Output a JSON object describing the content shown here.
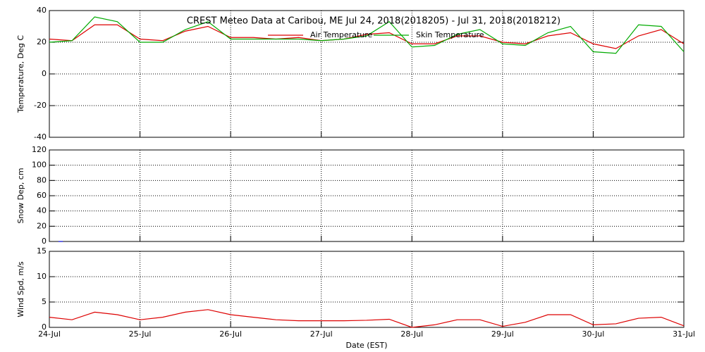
{
  "chart_data": [
    {
      "type": "line",
      "title": "CREST Meteo Data at Caribou, ME   Jul 24, 2018(2018205) - Jul 31, 2018(2018212)",
      "ylabel": "Temperature, Deg C",
      "legend": "top-center",
      "x": [
        0,
        0.25,
        0.5,
        0.75,
        1,
        1.25,
        1.5,
        1.75,
        2,
        2.25,
        2.5,
        2.75,
        3,
        3.25,
        3.5,
        3.75,
        4,
        4.25,
        4.5,
        4.75,
        5,
        5.25,
        5.5,
        5.75,
        6,
        6.25,
        6.5,
        6.75,
        7
      ],
      "series": [
        {
          "name": "Air Temperature",
          "color": "#dd0000",
          "values": [
            22,
            21,
            31,
            31,
            22,
            21,
            27,
            30,
            23,
            23,
            22,
            23,
            21,
            22,
            25,
            26,
            19,
            19,
            24,
            24,
            20,
            19,
            24,
            26,
            19,
            16,
            24,
            28,
            19
          ]
        },
        {
          "name": "Skin Temperature",
          "color": "#00aa00",
          "values": [
            20,
            21,
            36,
            33,
            20,
            20,
            28,
            33,
            22,
            22,
            22,
            22,
            21,
            22,
            24,
            33,
            17,
            18,
            25,
            28,
            19,
            18,
            26,
            30,
            14,
            13,
            31,
            30,
            14
          ]
        }
      ],
      "xlim": [
        0,
        7
      ],
      "xticks": [
        0,
        1,
        2,
        3,
        4,
        5,
        6,
        7
      ],
      "ylim": [
        -40,
        40
      ],
      "yticks": [
        -40,
        -20,
        0,
        20,
        40
      ],
      "grid": true
    },
    {
      "type": "line",
      "ylabel": "Snow Dep, cm",
      "x": [
        0.1,
        0.15
      ],
      "series": [
        {
          "color": "#0000cc",
          "values": [
            0,
            0
          ]
        }
      ],
      "xlim": [
        0,
        7
      ],
      "xticks": [
        0,
        1,
        2,
        3,
        4,
        5,
        6,
        7
      ],
      "ylim": [
        0,
        120
      ],
      "yticks": [
        0,
        20,
        40,
        60,
        80,
        100,
        120
      ],
      "grid": true
    },
    {
      "type": "line",
      "ylabel": "Wind Spd, m/s",
      "xlabel": "Date (EST)",
      "x": [
        0,
        0.25,
        0.5,
        0.75,
        1,
        1.25,
        1.5,
        1.75,
        2,
        2.25,
        2.5,
        2.75,
        3,
        3.25,
        3.5,
        3.75,
        4,
        4.25,
        4.5,
        4.75,
        5,
        5.25,
        5.5,
        5.75,
        6,
        6.25,
        6.5,
        6.75,
        7
      ],
      "series": [
        {
          "color": "#dd0000",
          "values": [
            2,
            1.5,
            3,
            2.5,
            1.5,
            2,
            3,
            3.5,
            2.5,
            2,
            1.5,
            1.3,
            1.3,
            1.3,
            1.4,
            1.6,
            0,
            0.5,
            1.5,
            1.5,
            0.2,
            1,
            2.5,
            2.5,
            0.5,
            0.7,
            1.8,
            2,
            0.3
          ]
        }
      ],
      "xlim": [
        0,
        7
      ],
      "xticks": [
        {
          "value": 0,
          "label": "24-Jul"
        },
        {
          "value": 1,
          "label": "25-Jul"
        },
        {
          "value": 2,
          "label": "26-Jul"
        },
        {
          "value": 3,
          "label": "27-Jul"
        },
        {
          "value": 4,
          "label": "28-Jul"
        },
        {
          "value": 5,
          "label": "29-Jul"
        },
        {
          "value": 6,
          "label": "30-Jul"
        },
        {
          "value": 7,
          "label": "31-Jul"
        }
      ],
      "ylim": [
        0,
        15
      ],
      "yticks": [
        0,
        5,
        10,
        15
      ],
      "grid": true
    }
  ]
}
